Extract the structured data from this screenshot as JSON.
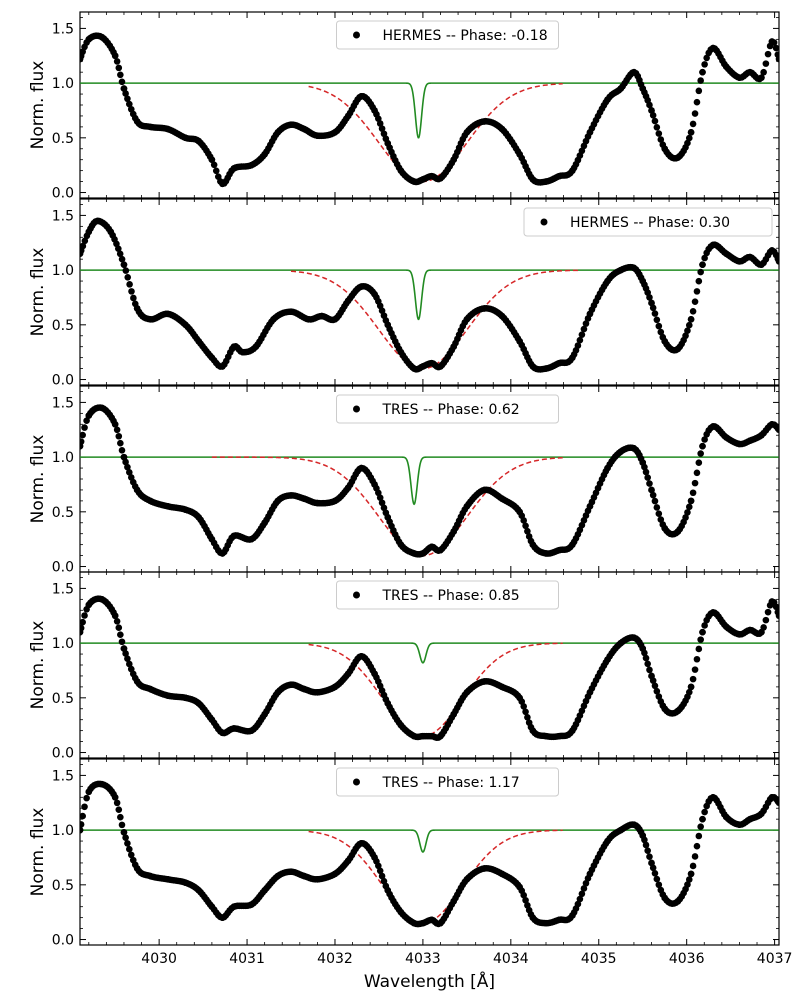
{
  "chart_data": {
    "type": "line",
    "xlabel": "Wavelength [Å]",
    "ylabel": "Norm. flux",
    "xlim": [
      4029.1,
      4037.05
    ],
    "ylim": [
      -0.05,
      1.65
    ],
    "xticks": [
      4030,
      4031,
      4032,
      4033,
      4034,
      4035,
      4036,
      4037
    ],
    "xtick_labels": [
      "4030",
      "4031",
      "4032",
      "4033",
      "4034",
      "4035",
      "4036",
      "4037"
    ],
    "yticks": [
      0.0,
      0.5,
      1.0,
      1.5
    ],
    "ytick_labels": [
      "0.0",
      "0.5",
      "1.0",
      "1.5"
    ],
    "colors": {
      "observed": "#000000",
      "model": "#d62728",
      "line_profile": "#228B22"
    },
    "panels": [
      {
        "label": "HERMES -- Phase: -0.18",
        "legend_loc": "top-center",
        "observed": {
          "name": "HERMES -- Phase: -0.18",
          "x": [
            4029.1,
            4029.2,
            4029.35,
            4029.5,
            4029.6,
            4029.75,
            4029.9,
            4030.1,
            4030.3,
            4030.45,
            4030.6,
            4030.72,
            4030.85,
            4031.05,
            4031.2,
            4031.35,
            4031.5,
            4031.65,
            4031.8,
            4032.0,
            4032.15,
            4032.3,
            4032.45,
            4032.6,
            4032.75,
            4032.9,
            4033.0,
            4033.1,
            4033.2,
            4033.35,
            4033.5,
            4033.7,
            4033.9,
            4034.1,
            4034.25,
            4034.4,
            4034.55,
            4034.7,
            4034.9,
            4035.1,
            4035.25,
            4035.4,
            4035.5,
            4035.6,
            4035.75,
            4035.9,
            4036.05,
            4036.18,
            4036.3,
            4036.45,
            4036.6,
            4036.72,
            4036.85,
            4036.97,
            4037.05
          ],
          "y": [
            1.22,
            1.4,
            1.42,
            1.25,
            0.95,
            0.65,
            0.6,
            0.58,
            0.5,
            0.47,
            0.3,
            0.08,
            0.22,
            0.25,
            0.35,
            0.55,
            0.62,
            0.58,
            0.52,
            0.55,
            0.7,
            0.88,
            0.75,
            0.45,
            0.2,
            0.1,
            0.12,
            0.15,
            0.13,
            0.3,
            0.55,
            0.65,
            0.58,
            0.35,
            0.12,
            0.1,
            0.15,
            0.2,
            0.55,
            0.85,
            0.95,
            1.1,
            0.95,
            0.75,
            0.4,
            0.32,
            0.55,
            1.1,
            1.32,
            1.15,
            1.05,
            1.1,
            1.05,
            1.38,
            1.22
          ]
        },
        "model": {
          "center": 4033.0,
          "depth": 0.9,
          "width": 0.5,
          "x_start": 4031.7,
          "x_end": 4034.6
        },
        "line_profile": {
          "center": 4032.95,
          "depth": 0.5,
          "width": 0.035,
          "x_start": 4029.1,
          "x_end": 4037.05
        }
      },
      {
        "label": "HERMES -- Phase: 0.30",
        "legend_loc": "top-right",
        "observed": {
          "name": "HERMES -- Phase: 0.30",
          "x": [
            4029.1,
            4029.2,
            4029.3,
            4029.45,
            4029.6,
            4029.75,
            4029.9,
            4030.1,
            4030.3,
            4030.45,
            4030.6,
            4030.72,
            4030.85,
            4030.95,
            4031.1,
            4031.3,
            4031.5,
            4031.7,
            4031.85,
            4032.0,
            4032.15,
            4032.3,
            4032.45,
            4032.6,
            4032.75,
            4032.9,
            4033.0,
            4033.1,
            4033.2,
            4033.35,
            4033.5,
            4033.7,
            4033.9,
            4034.1,
            4034.25,
            4034.4,
            4034.55,
            4034.7,
            4034.9,
            4035.1,
            4035.25,
            4035.4,
            4035.5,
            4035.6,
            4035.75,
            4035.9,
            4036.05,
            4036.18,
            4036.3,
            4036.45,
            4036.6,
            4036.72,
            4036.85,
            4036.97,
            4037.05
          ],
          "y": [
            1.15,
            1.35,
            1.45,
            1.35,
            1.05,
            0.65,
            0.55,
            0.6,
            0.5,
            0.35,
            0.2,
            0.12,
            0.3,
            0.25,
            0.3,
            0.55,
            0.62,
            0.55,
            0.58,
            0.55,
            0.72,
            0.85,
            0.78,
            0.5,
            0.25,
            0.1,
            0.12,
            0.15,
            0.12,
            0.3,
            0.55,
            0.65,
            0.58,
            0.35,
            0.12,
            0.1,
            0.15,
            0.2,
            0.6,
            0.9,
            1.0,
            1.02,
            0.9,
            0.7,
            0.35,
            0.28,
            0.55,
            1.05,
            1.23,
            1.15,
            1.08,
            1.12,
            1.05,
            1.18,
            1.08
          ]
        },
        "model": {
          "center": 4033.0,
          "depth": 0.9,
          "width": 0.5,
          "x_start": 4031.5,
          "x_end": 4034.8
        },
        "line_profile": {
          "center": 4032.95,
          "depth": 0.45,
          "width": 0.035,
          "x_start": 4029.1,
          "x_end": 4037.05
        }
      },
      {
        "label": "TRES -- Phase: 0.62",
        "legend_loc": "top-center",
        "observed": {
          "name": "TRES -- Phase: 0.62",
          "x": [
            4029.1,
            4029.2,
            4029.35,
            4029.5,
            4029.6,
            4029.75,
            4029.9,
            4030.1,
            4030.3,
            4030.45,
            4030.6,
            4030.72,
            4030.85,
            4031.05,
            4031.2,
            4031.35,
            4031.5,
            4031.65,
            4031.8,
            4032.0,
            4032.15,
            4032.3,
            4032.45,
            4032.6,
            4032.75,
            4032.9,
            4033.0,
            4033.1,
            4033.2,
            4033.35,
            4033.5,
            4033.7,
            4033.9,
            4034.1,
            4034.25,
            4034.4,
            4034.55,
            4034.7,
            4034.9,
            4035.1,
            4035.25,
            4035.4,
            4035.5,
            4035.6,
            4035.75,
            4035.9,
            4036.05,
            4036.18,
            4036.3,
            4036.45,
            4036.6,
            4036.72,
            4036.85,
            4036.97,
            4037.05
          ],
          "y": [
            1.1,
            1.38,
            1.45,
            1.3,
            1.0,
            0.7,
            0.6,
            0.55,
            0.52,
            0.45,
            0.25,
            0.12,
            0.28,
            0.25,
            0.4,
            0.6,
            0.65,
            0.62,
            0.58,
            0.6,
            0.72,
            0.9,
            0.75,
            0.45,
            0.2,
            0.12,
            0.12,
            0.18,
            0.15,
            0.32,
            0.55,
            0.7,
            0.62,
            0.5,
            0.2,
            0.12,
            0.15,
            0.2,
            0.55,
            0.9,
            1.05,
            1.08,
            0.95,
            0.7,
            0.35,
            0.32,
            0.6,
            1.1,
            1.28,
            1.18,
            1.12,
            1.15,
            1.2,
            1.3,
            1.25
          ]
        },
        "model": {
          "center": 4033.0,
          "depth": 0.9,
          "width": 0.5,
          "x_start": 4030.6,
          "x_end": 4034.6
        },
        "line_profile": {
          "center": 4032.9,
          "depth": 0.43,
          "width": 0.035,
          "x_start": 4029.1,
          "x_end": 4037.05
        }
      },
      {
        "label": "TRES -- Phase: 0.85",
        "legend_loc": "top-center",
        "observed": {
          "name": "TRES -- Phase: 0.85",
          "x": [
            4029.1,
            4029.2,
            4029.35,
            4029.5,
            4029.6,
            4029.75,
            4029.9,
            4030.1,
            4030.3,
            4030.45,
            4030.6,
            4030.72,
            4030.85,
            4031.05,
            4031.2,
            4031.35,
            4031.5,
            4031.65,
            4031.8,
            4032.0,
            4032.15,
            4032.3,
            4032.45,
            4032.6,
            4032.75,
            4032.9,
            4033.0,
            4033.1,
            4033.2,
            4033.35,
            4033.5,
            4033.7,
            4033.9,
            4034.1,
            4034.25,
            4034.4,
            4034.55,
            4034.7,
            4034.9,
            4035.1,
            4035.25,
            4035.4,
            4035.5,
            4035.6,
            4035.75,
            4035.9,
            4036.05,
            4036.18,
            4036.3,
            4036.45,
            4036.6,
            4036.72,
            4036.85,
            4036.97,
            4037.05
          ],
          "y": [
            1.1,
            1.35,
            1.4,
            1.25,
            0.95,
            0.65,
            0.58,
            0.52,
            0.5,
            0.45,
            0.3,
            0.18,
            0.22,
            0.2,
            0.35,
            0.55,
            0.62,
            0.58,
            0.55,
            0.6,
            0.72,
            0.88,
            0.72,
            0.45,
            0.25,
            0.15,
            0.15,
            0.15,
            0.15,
            0.35,
            0.55,
            0.65,
            0.6,
            0.5,
            0.2,
            0.15,
            0.15,
            0.2,
            0.55,
            0.85,
            1.0,
            1.05,
            0.95,
            0.7,
            0.4,
            0.38,
            0.6,
            1.1,
            1.28,
            1.15,
            1.08,
            1.12,
            1.1,
            1.38,
            1.25
          ]
        },
        "model": {
          "center": 4033.0,
          "depth": 0.85,
          "width": 0.45,
          "x_start": 4031.7,
          "x_end": 4034.6
        },
        "line_profile": {
          "center": 4033.0,
          "depth": 0.18,
          "width": 0.035,
          "x_start": 4029.1,
          "x_end": 4037.05
        }
      },
      {
        "label": "TRES -- Phase: 1.17",
        "legend_loc": "top-center",
        "observed": {
          "name": "TRES -- Phase: 1.17",
          "x": [
            4029.1,
            4029.2,
            4029.35,
            4029.5,
            4029.6,
            4029.75,
            4029.9,
            4030.1,
            4030.3,
            4030.45,
            4030.6,
            4030.72,
            4030.85,
            4031.05,
            4031.2,
            4031.35,
            4031.5,
            4031.65,
            4031.8,
            4032.0,
            4032.15,
            4032.3,
            4032.45,
            4032.6,
            4032.75,
            4032.9,
            4033.0,
            4033.1,
            4033.2,
            4033.35,
            4033.5,
            4033.7,
            4033.9,
            4034.1,
            4034.25,
            4034.4,
            4034.55,
            4034.7,
            4034.9,
            4035.1,
            4035.25,
            4035.4,
            4035.5,
            4035.6,
            4035.75,
            4035.9,
            4036.05,
            4036.18,
            4036.3,
            4036.45,
            4036.6,
            4036.72,
            4036.85,
            4036.97,
            4037.05
          ],
          "y": [
            1.0,
            1.35,
            1.42,
            1.3,
            0.98,
            0.65,
            0.58,
            0.55,
            0.52,
            0.45,
            0.3,
            0.2,
            0.3,
            0.32,
            0.45,
            0.58,
            0.62,
            0.58,
            0.55,
            0.6,
            0.72,
            0.88,
            0.75,
            0.45,
            0.25,
            0.15,
            0.15,
            0.18,
            0.15,
            0.35,
            0.55,
            0.65,
            0.6,
            0.48,
            0.2,
            0.15,
            0.18,
            0.22,
            0.6,
            0.9,
            1.0,
            1.05,
            0.95,
            0.7,
            0.38,
            0.35,
            0.6,
            1.1,
            1.3,
            1.12,
            1.05,
            1.1,
            1.15,
            1.3,
            1.25
          ]
        },
        "model": {
          "center": 4033.0,
          "depth": 0.85,
          "width": 0.45,
          "x_start": 4031.7,
          "x_end": 4034.6
        },
        "line_profile": {
          "center": 4033.0,
          "depth": 0.2,
          "width": 0.035,
          "x_start": 4029.1,
          "x_end": 4037.05
        }
      }
    ]
  }
}
